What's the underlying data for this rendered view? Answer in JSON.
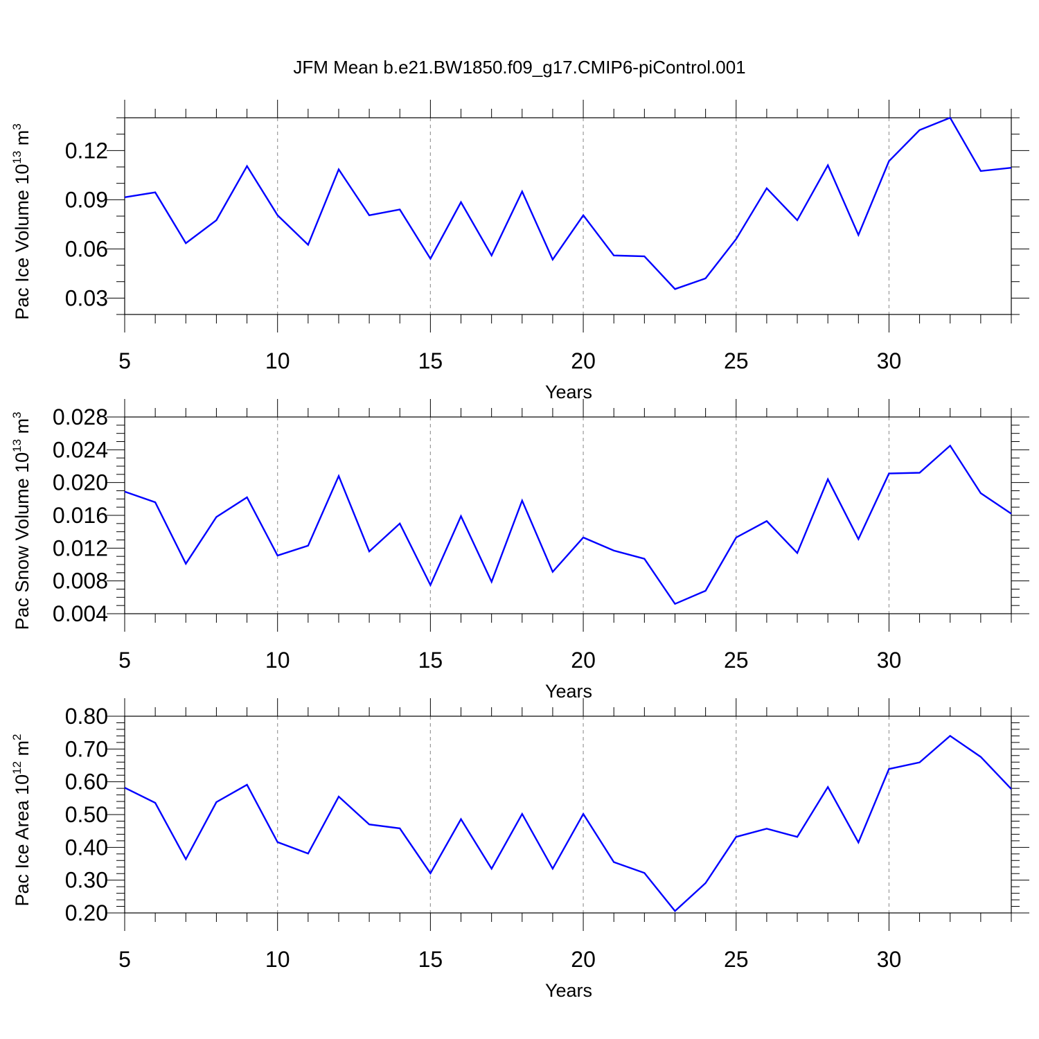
{
  "title": "JFM Mean b.e21.BW1850.f09_g17.CMIP6-piControl.001",
  "colors": {
    "series": "#0000ff",
    "axis": "#000000",
    "grid": "#999999"
  },
  "chart_data": [
    {
      "type": "line",
      "name": "ice-volume",
      "ylabel": "Pac Ice Volume 10",
      "ylabel_exp": "13",
      "ylabel_unit": " m",
      "ylabel_unit_exp": "3",
      "xlabel": "Years",
      "xlim": [
        5,
        34
      ],
      "ylim": [
        0.02,
        0.14
      ],
      "xticks": [
        5,
        10,
        15,
        20,
        25,
        30
      ],
      "xtick_labels": [
        "5",
        "10",
        "15",
        "20",
        "25",
        "30"
      ],
      "yticks": [
        0.03,
        0.06,
        0.09,
        0.12
      ],
      "ytick_labels": [
        "0.03",
        "0.06",
        "0.09",
        "0.12"
      ],
      "y_minor_step": 0.01,
      "grid": "x-dashed",
      "x": [
        5,
        6,
        7,
        8,
        9,
        10,
        11,
        12,
        13,
        14,
        15,
        16,
        17,
        18,
        19,
        20,
        21,
        22,
        23,
        24,
        25,
        26,
        27,
        28,
        29,
        30,
        31,
        32,
        33,
        34
      ],
      "values": [
        0.0915,
        0.0945,
        0.0635,
        0.0775,
        0.1105,
        0.0805,
        0.0625,
        0.1085,
        0.0805,
        0.084,
        0.054,
        0.0885,
        0.056,
        0.095,
        0.0535,
        0.0805,
        0.056,
        0.0555,
        0.0355,
        0.042,
        0.066,
        0.097,
        0.0775,
        0.111,
        0.0685,
        0.1135,
        0.1325,
        0.14,
        0.1075,
        0.1095
      ]
    },
    {
      "type": "line",
      "name": "snow-volume",
      "ylabel": "Pac Snow Volume 10",
      "ylabel_exp": "13",
      "ylabel_unit": " m",
      "ylabel_unit_exp": "3",
      "xlabel": "Years",
      "xlim": [
        5,
        34
      ],
      "ylim": [
        0.004,
        0.028
      ],
      "xticks": [
        5,
        10,
        15,
        20,
        25,
        30
      ],
      "xtick_labels": [
        "5",
        "10",
        "15",
        "20",
        "25",
        "30"
      ],
      "yticks": [
        0.004,
        0.008,
        0.012,
        0.016,
        0.02,
        0.024,
        0.028
      ],
      "ytick_labels": [
        "0.004",
        "0.008",
        "0.012",
        "0.016",
        "0.020",
        "0.024",
        "0.028"
      ],
      "y_minor_step": 0.001,
      "grid": "x-dashed",
      "x": [
        5,
        6,
        7,
        8,
        9,
        10,
        11,
        12,
        13,
        14,
        15,
        16,
        17,
        18,
        19,
        20,
        21,
        22,
        23,
        24,
        25,
        26,
        27,
        28,
        29,
        30,
        31,
        32,
        33,
        34
      ],
      "values": [
        0.0189,
        0.0176,
        0.0101,
        0.0158,
        0.0182,
        0.0111,
        0.0123,
        0.0208,
        0.0116,
        0.015,
        0.0075,
        0.0159,
        0.0079,
        0.0178,
        0.0091,
        0.0133,
        0.0117,
        0.0107,
        0.0052,
        0.0068,
        0.0133,
        0.0153,
        0.0114,
        0.0204,
        0.0131,
        0.0211,
        0.0212,
        0.0245,
        0.0187,
        0.0162
      ]
    },
    {
      "type": "line",
      "name": "ice-area",
      "ylabel": "Pac Ice Area 10",
      "ylabel_exp": "12",
      "ylabel_unit": " m",
      "ylabel_unit_exp": "2",
      "xlabel": "Years",
      "xlim": [
        5,
        34
      ],
      "ylim": [
        0.2,
        0.8
      ],
      "xticks": [
        5,
        10,
        15,
        20,
        25,
        30
      ],
      "xtick_labels": [
        "5",
        "10",
        "15",
        "20",
        "25",
        "30"
      ],
      "yticks": [
        0.2,
        0.3,
        0.4,
        0.5,
        0.6,
        0.7,
        0.8
      ],
      "ytick_labels": [
        "0.20",
        "0.30",
        "0.40",
        "0.50",
        "0.60",
        "0.70",
        "0.80"
      ],
      "y_minor_step": 0.02,
      "grid": "x-dashed",
      "x": [
        5,
        6,
        7,
        8,
        9,
        10,
        11,
        12,
        13,
        14,
        15,
        16,
        17,
        18,
        19,
        20,
        21,
        22,
        23,
        24,
        25,
        26,
        27,
        28,
        29,
        30,
        31,
        32,
        33,
        34
      ],
      "values": [
        0.582,
        0.536,
        0.364,
        0.538,
        0.591,
        0.416,
        0.381,
        0.555,
        0.47,
        0.458,
        0.321,
        0.486,
        0.335,
        0.502,
        0.335,
        0.502,
        0.355,
        0.322,
        0.206,
        0.291,
        0.432,
        0.457,
        0.432,
        0.584,
        0.415,
        0.639,
        0.659,
        0.74,
        0.676,
        0.578
      ]
    }
  ]
}
